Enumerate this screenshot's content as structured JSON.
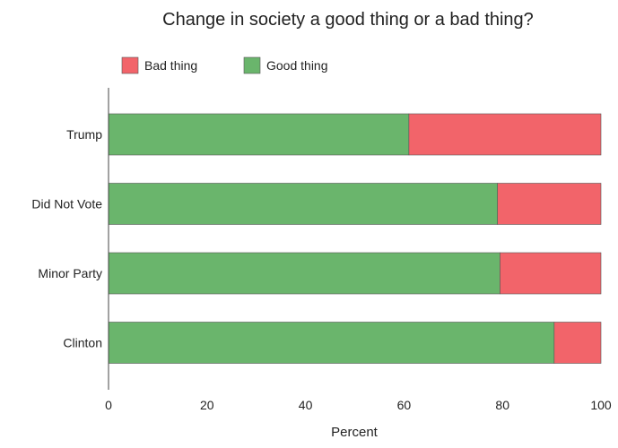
{
  "chart_data": {
    "type": "bar",
    "orientation": "horizontal",
    "stacked": true,
    "title": "Change in society a good thing or a bad thing?",
    "xlabel": "Percent",
    "ylabel": "",
    "xlim": [
      0,
      100
    ],
    "xticks": [
      0,
      20,
      40,
      60,
      80,
      100
    ],
    "categories": [
      "Trump",
      "Did Not Vote",
      "Minor Party",
      "Clinton"
    ],
    "series": [
      {
        "name": "Good thing",
        "color": "#6ab56c",
        "values": [
          61,
          79,
          79.5,
          90.5
        ]
      },
      {
        "name": "Bad thing",
        "color": "#f2646a",
        "values": [
          39,
          21,
          20.5,
          9.5
        ]
      }
    ],
    "legend": {
      "placement": "top-left",
      "order": [
        "Bad thing",
        "Good thing"
      ]
    },
    "grid": false
  }
}
